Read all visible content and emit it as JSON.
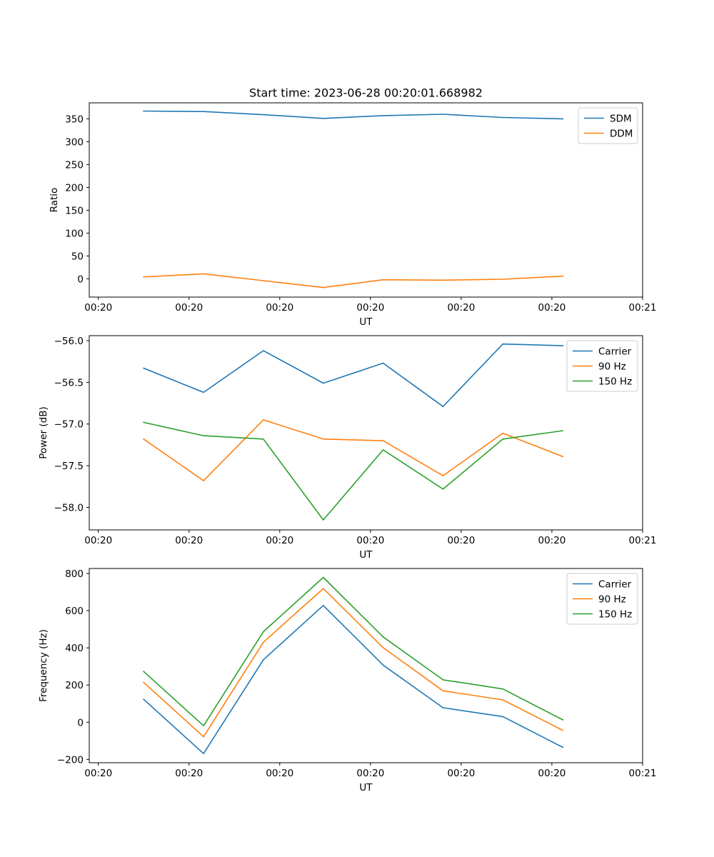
{
  "figure_title": "Start time: 2023-06-28 00:20:01.668982",
  "colors": {
    "blue": "#1f77b4",
    "orange": "#ff7f0e",
    "green": "#2ca02c"
  },
  "chart_data": [
    {
      "type": "line",
      "title": "Start time: 2023-06-28 00:20:01.668982",
      "xlabel": "UT",
      "ylabel": "Ratio",
      "xlim": [
        -0.6,
        5.5
      ],
      "ylim": [
        -40,
        385
      ],
      "x_ticks": [
        {
          "value": -0.5,
          "label": "00:20"
        },
        {
          "value": 0.5,
          "label": "00:20"
        },
        {
          "value": 1.5,
          "label": "00:20"
        },
        {
          "value": 2.5,
          "label": "00:20"
        },
        {
          "value": 3.5,
          "label": "00:20"
        },
        {
          "value": 4.5,
          "label": "00:20"
        },
        {
          "value": 5.5,
          "label": "00:21"
        }
      ],
      "y_ticks": [
        {
          "value": 0,
          "label": "0"
        },
        {
          "value": 50,
          "label": "50"
        },
        {
          "value": 100,
          "label": "100"
        },
        {
          "value": 150,
          "label": "150"
        },
        {
          "value": 200,
          "label": "200"
        },
        {
          "value": 250,
          "label": "250"
        },
        {
          "value": 300,
          "label": "300"
        },
        {
          "value": 350,
          "label": "350"
        }
      ],
      "x": [
        0,
        0.66,
        1.32,
        1.98,
        2.64,
        3.3,
        3.96,
        4.62
      ],
      "series": [
        {
          "name": "SDM",
          "color": "#1f77b4",
          "values": [
            367,
            366,
            359,
            351,
            357,
            360,
            353,
            350
          ]
        },
        {
          "name": "DDM",
          "color": "#ff7f0e",
          "values": [
            4,
            11,
            -4,
            -19,
            -2,
            -3,
            -1,
            6
          ]
        }
      ],
      "legend": "upper right"
    },
    {
      "type": "line",
      "xlabel": "UT",
      "ylabel": "Power (dB)",
      "xlim": [
        -0.6,
        5.5
      ],
      "ylim": [
        -58.27,
        -55.94
      ],
      "x_ticks": [
        {
          "value": -0.5,
          "label": "00:20"
        },
        {
          "value": 0.5,
          "label": "00:20"
        },
        {
          "value": 1.5,
          "label": "00:20"
        },
        {
          "value": 2.5,
          "label": "00:20"
        },
        {
          "value": 3.5,
          "label": "00:20"
        },
        {
          "value": 4.5,
          "label": "00:20"
        },
        {
          "value": 5.5,
          "label": "00:21"
        }
      ],
      "y_ticks": [
        {
          "value": -58.0,
          "label": "−58.0"
        },
        {
          "value": -57.5,
          "label": "−57.5"
        },
        {
          "value": -57.0,
          "label": "−57.0"
        },
        {
          "value": -56.5,
          "label": "−56.5"
        },
        {
          "value": -56.0,
          "label": "−56.0"
        }
      ],
      "x": [
        0,
        0.66,
        1.32,
        1.98,
        2.64,
        3.3,
        3.96,
        4.62
      ],
      "series": [
        {
          "name": "Carrier",
          "color": "#1f77b4",
          "values": [
            -56.33,
            -56.62,
            -56.12,
            -56.51,
            -56.27,
            -56.79,
            -56.04,
            -56.06
          ]
        },
        {
          "name": "90 Hz",
          "color": "#ff7f0e",
          "values": [
            -57.18,
            -57.68,
            -56.95,
            -57.18,
            -57.2,
            -57.62,
            -57.11,
            -57.39
          ]
        },
        {
          "name": "150 Hz",
          "color": "#2ca02c",
          "values": [
            -56.98,
            -57.14,
            -57.18,
            -58.15,
            -57.31,
            -57.78,
            -57.18,
            -57.08
          ]
        }
      ],
      "legend": "upper right"
    },
    {
      "type": "line",
      "xlabel": "UT",
      "ylabel": "Frequency (Hz)",
      "xlim": [
        -0.6,
        5.5
      ],
      "ylim": [
        -218,
        827
      ],
      "x_ticks": [
        {
          "value": -0.5,
          "label": "00:20"
        },
        {
          "value": 0.5,
          "label": "00:20"
        },
        {
          "value": 1.5,
          "label": "00:20"
        },
        {
          "value": 2.5,
          "label": "00:20"
        },
        {
          "value": 3.5,
          "label": "00:20"
        },
        {
          "value": 4.5,
          "label": "00:20"
        },
        {
          "value": 5.5,
          "label": "00:21"
        }
      ],
      "y_ticks": [
        {
          "value": -200,
          "label": "−200"
        },
        {
          "value": 0,
          "label": "0"
        },
        {
          "value": 200,
          "label": "200"
        },
        {
          "value": 400,
          "label": "400"
        },
        {
          "value": 600,
          "label": "600"
        },
        {
          "value": 800,
          "label": "800"
        }
      ],
      "x": [
        0,
        0.66,
        1.32,
        1.98,
        2.64,
        3.3,
        3.96,
        4.62
      ],
      "series": [
        {
          "name": "Carrier",
          "color": "#1f77b4",
          "values": [
            123,
            -169,
            336,
            628,
            307,
            78,
            30,
            -135
          ]
        },
        {
          "name": "90 Hz",
          "color": "#ff7f0e",
          "values": [
            214,
            -78,
            430,
            719,
            401,
            169,
            120,
            -44
          ]
        },
        {
          "name": "150 Hz",
          "color": "#2ca02c",
          "values": [
            273,
            -19,
            487,
            779,
            459,
            228,
            179,
            13
          ]
        }
      ],
      "legend": "upper right"
    }
  ]
}
